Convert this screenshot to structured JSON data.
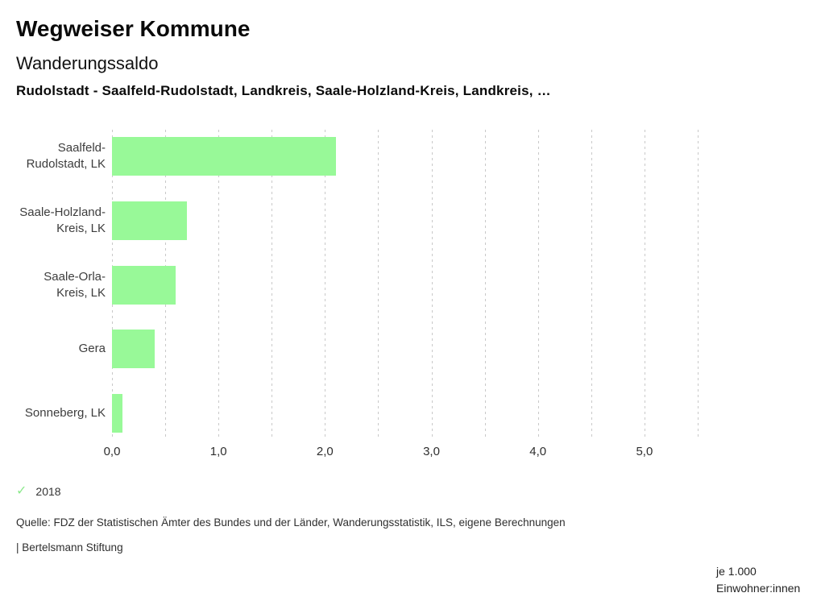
{
  "header": {
    "title": "Wegweiser Kommune",
    "subtitle": "Wanderungssaldo",
    "description": "Rudolstadt - Saalfeld-Rudolstadt, Landkreis, Saale-Holzland-Kreis, Landkreis, …"
  },
  "chart_data": {
    "type": "bar",
    "orientation": "horizontal",
    "title": "Wanderungssaldo",
    "categories": [
      "Saalfeld-Rudolstadt, LK",
      "Saale-Holzland-Kreis, LK",
      "Saale-Orla-Kreis, LK",
      "Gera",
      "Sonneberg, LK"
    ],
    "category_label_lines": [
      [
        "Saalfeld-",
        "Rudolstadt, LK"
      ],
      [
        "Saale-Holzland-",
        "Kreis, LK"
      ],
      [
        "Saale-Orla-",
        "Kreis, LK"
      ],
      [
        "Gera"
      ],
      [
        "Sonneberg, LK"
      ]
    ],
    "series": [
      {
        "name": "2018",
        "values": [
          2.1,
          0.7,
          0.6,
          0.4,
          0.1
        ]
      }
    ],
    "xlabel": "je 1.000 Einwohner:innen",
    "xlim": [
      0.0,
      5.5
    ],
    "xtick_values": [
      0,
      1,
      2,
      3,
      4,
      5
    ],
    "xtick_labels": [
      "0,0",
      "1,0",
      "2,0",
      "3,0",
      "4,0",
      "5,0"
    ],
    "gridline_step": 0.5,
    "grid": "vertical-dashed",
    "legend_position": "bottom-left",
    "bar_color": "#98f998"
  },
  "axis": {
    "unit_line1": "je 1.000",
    "unit_line2": "Einwohner:innen"
  },
  "legend": {
    "check_icon": "✓",
    "check_color": "#8ce98c",
    "year": "2018"
  },
  "footer": {
    "source": "Quelle: FDZ der Statistischen Ämter des Bundes und der Länder, Wanderungsstatistik, ILS, eigene Berechnungen",
    "attribution": "| Bertelsmann Stiftung"
  }
}
